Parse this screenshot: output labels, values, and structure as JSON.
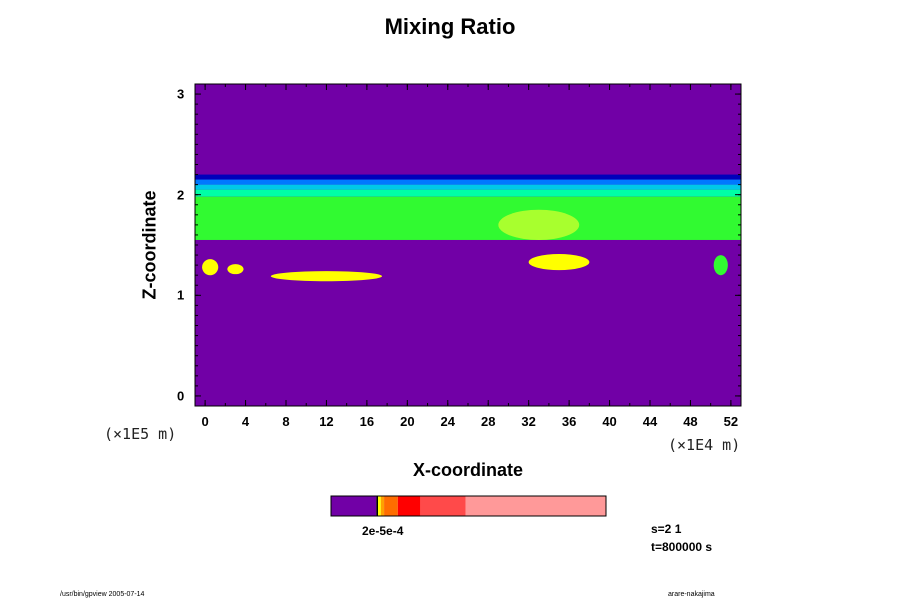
{
  "chart_data": {
    "type": "heatmap",
    "title": "Mixing Ratio",
    "xlabel": "X-coordinate",
    "ylabel": "Z-coordinate",
    "x_unit": "(×1E4 m)",
    "y_unit": "(×1E5 m)",
    "xlim": [
      -1,
      53
    ],
    "ylim": [
      -0.1,
      3.1
    ],
    "x_ticks": [
      "0",
      "4",
      "8",
      "12",
      "16",
      "20",
      "24",
      "28",
      "32",
      "36",
      "40",
      "44",
      "48",
      "52"
    ],
    "y_ticks": [
      "0",
      "1",
      "2",
      "3"
    ],
    "background_color": "#7100a6",
    "layers": [
      {
        "color": "#0000bb",
        "z_range": [
          2.15,
          2.2
        ]
      },
      {
        "color": "#0078ff",
        "z_range": [
          2.1,
          2.15
        ]
      },
      {
        "color": "#00c8e8",
        "z_range": [
          2.05,
          2.1
        ]
      },
      {
        "color": "#00ffa5",
        "z_range": [
          1.98,
          2.05
        ]
      },
      {
        "color": "#31fa31",
        "z_range": [
          1.55,
          1.98
        ]
      }
    ],
    "blobs": [
      {
        "color": "#a8ff2e",
        "x_center": 33,
        "z_center": 1.7,
        "x_radius": 4,
        "z_radius": 0.15
      },
      {
        "color": "#ffff00",
        "x_center": 35,
        "z_center": 1.33,
        "x_radius": 3,
        "z_radius": 0.08
      },
      {
        "color": "#ffff00",
        "x_center": 12,
        "z_center": 1.19,
        "x_radius": 5.5,
        "z_radius": 0.05
      },
      {
        "color": "#ffff00",
        "x_center": 0.5,
        "z_center": 1.28,
        "x_radius": 0.8,
        "z_radius": 0.08
      },
      {
        "color": "#ffff00",
        "x_center": 3,
        "z_center": 1.26,
        "x_radius": 0.8,
        "z_radius": 0.05
      },
      {
        "color": "#31fa31",
        "x_center": 51,
        "z_center": 1.3,
        "x_radius": 0.7,
        "z_radius": 0.1
      }
    ],
    "colorbar": {
      "label": "2e-5e-4",
      "segments": [
        {
          "color": "#7100a6",
          "fraction": 0.165
        },
        {
          "color": "#000000",
          "fraction": 0.006
        },
        {
          "color": "#ffff00",
          "fraction": 0.01
        },
        {
          "color": "#ffa000",
          "fraction": 0.012
        },
        {
          "color": "#ff6d00",
          "fraction": 0.05
        },
        {
          "color": "#ff0000",
          "fraction": 0.082
        },
        {
          "color": "#ff4a4a",
          "fraction": 0.165
        },
        {
          "color": "#ff9999",
          "fraction": 0.51
        }
      ]
    },
    "annotations": [
      "s=2 1",
      "t=800000 s"
    ]
  },
  "footer": {
    "left": "/usr/bin/gpview 2005-07-14",
    "right": "arare-nakajima"
  }
}
